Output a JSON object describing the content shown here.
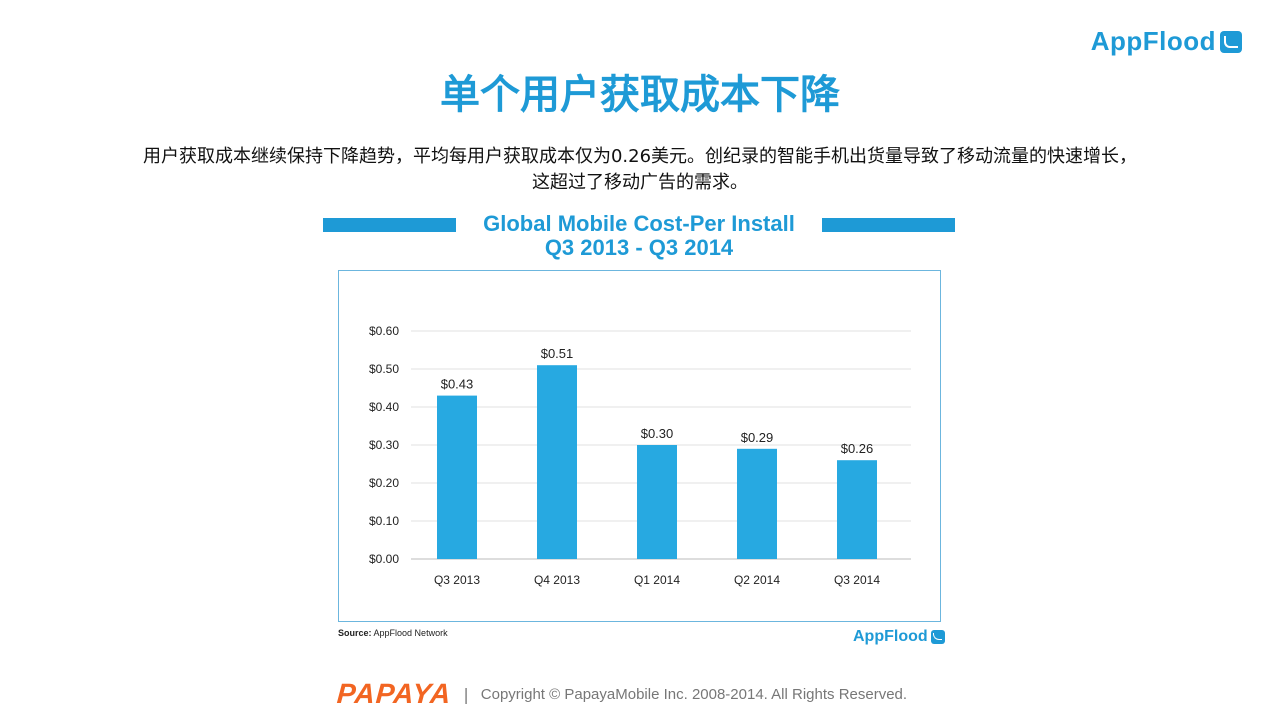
{
  "header": {
    "brand": "AppFlood",
    "brand_icon": "wave-icon"
  },
  "page": {
    "title": "单个用户获取成本下降",
    "subtitle_line1": "用户获取成本继续保持下降趋势，平均每用户获取成本仅为0.26美元。创纪录的智能手机出货量导致了移动流量的快速增长，",
    "subtitle_line2": "这超过了移动广告的需求。"
  },
  "chart_data": {
    "type": "bar",
    "title": "Global Mobile Cost-Per Install",
    "subtitle": "Q3 2013 - Q3 2014",
    "categories": [
      "Q3 2013",
      "Q4 2013",
      "Q1 2014",
      "Q2 2014",
      "Q3 2014"
    ],
    "values": [
      0.43,
      0.51,
      0.3,
      0.29,
      0.26
    ],
    "data_labels": [
      "$0.43",
      "$0.51",
      "$0.30",
      "$0.29",
      "$0.26"
    ],
    "y_ticks": [
      "$0.00",
      "$0.10",
      "$0.20",
      "$0.30",
      "$0.40",
      "$0.50",
      "$0.60"
    ],
    "ylim": [
      0,
      0.6
    ],
    "grid": true,
    "xlabel": "",
    "ylabel": "",
    "bar_color": "#27a9e1"
  },
  "chart_source": {
    "label": "Source:",
    "text": "AppFlood Network"
  },
  "chart_brand": "AppFlood",
  "footer": {
    "logo_text": "PAPAYA",
    "separator": "|",
    "copyright": "Copyright © PapayaMobile Inc. 2008-2014. All Rights Reserved."
  },
  "colors": {
    "accent": "#1e9ad6",
    "papaya": "#f26522"
  }
}
